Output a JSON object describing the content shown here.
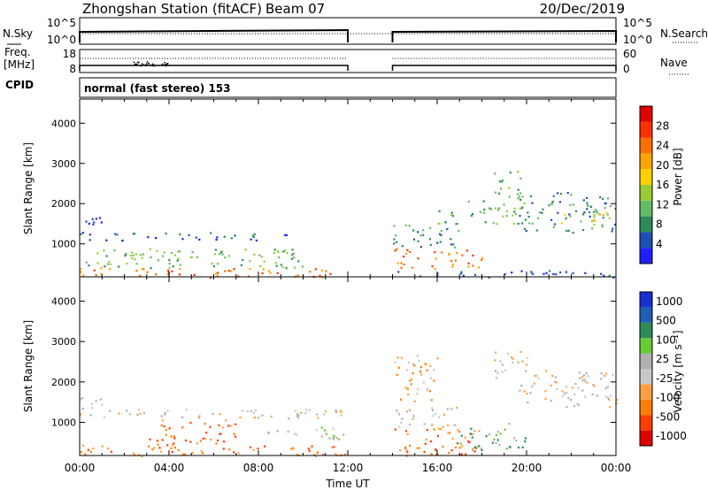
{
  "header": {
    "title": "Zhongshan Station (fitACF)",
    "beam": "Beam 07",
    "date": "20/Dec/2019",
    "mode": "normal (fast stereo) 153"
  },
  "strip_labels": {
    "nsky": "N.Sky",
    "nsearch": "N.Search",
    "freq_line1": "Freq.",
    "freq_line2": "[MHz]",
    "nave": "Nave",
    "cpid": "CPID",
    "exp_hi": "10^5",
    "exp_lo": "10^0",
    "freq_hi": "18",
    "freq_lo": "8",
    "nave_hi": "60",
    "nave_lo": "0"
  },
  "colors": {
    "power": [
      "#2020ff",
      "#1e4fb4",
      "#2e8b57",
      "#66bb66",
      "#99cc33",
      "#ffd000",
      "#ffa500",
      "#ff7000",
      "#ff3000",
      "#e00000"
    ],
    "velocity": [
      "#e00000",
      "#ff4000",
      "#ff8000",
      "#ffa040",
      "#c8c8c8",
      "#b0b0b0",
      "#66cc33",
      "#2e8b57",
      "#1e5fb4",
      "#1a2fd0"
    ]
  },
  "chart_data": [
    {
      "type": "heatmap",
      "name": "power",
      "xlabel": "",
      "ylabel": "Slant Range [km]",
      "colorbar_label": "Power [dB]",
      "colorbar_ticks": [
        "28",
        "24",
        "20",
        "16",
        "12",
        "8",
        "4"
      ],
      "xlim": [
        0,
        24
      ],
      "ylim": [
        180,
        4600
      ],
      "x_ticks": [
        "00:00",
        "04:00",
        "08:00",
        "12:00",
        "16:00",
        "20:00",
        "00:00"
      ],
      "y_ticks": [
        1000,
        2000,
        3000,
        4000
      ],
      "gap_hours": [
        12,
        14
      ],
      "regions": [
        {
          "t0": 0.0,
          "t1": 11.9,
          "r0": 180,
          "r1": 420,
          "level": 7
        },
        {
          "t0": 0.0,
          "t1": 10.0,
          "r0": 420,
          "r1": 900,
          "level": 3
        },
        {
          "t0": 0.0,
          "t1": 9.5,
          "r0": 1100,
          "r1": 1300,
          "level": 1
        },
        {
          "t0": 0.0,
          "t1": 1.0,
          "r0": 1300,
          "r1": 1750,
          "level": 1
        },
        {
          "t0": 2.0,
          "t1": 4.0,
          "r0": 650,
          "r1": 900,
          "level": 4
        },
        {
          "t0": 14.0,
          "t1": 23.9,
          "r0": 180,
          "r1": 350,
          "level": 1
        },
        {
          "t0": 14.0,
          "t1": 18.0,
          "r0": 400,
          "r1": 900,
          "level": 7
        },
        {
          "t0": 14.0,
          "t1": 17.0,
          "r0": 900,
          "r1": 1500,
          "level": 2
        },
        {
          "t0": 16.0,
          "t1": 20.0,
          "r0": 1500,
          "r1": 2100,
          "level": 3
        },
        {
          "t0": 18.5,
          "t1": 19.8,
          "r0": 2100,
          "r1": 2850,
          "level": 3
        },
        {
          "t0": 19.5,
          "t1": 24.0,
          "r0": 1300,
          "r1": 2300,
          "level": 2
        },
        {
          "t0": 21.5,
          "t1": 24.0,
          "r0": 1500,
          "r1": 1800,
          "level": 5
        }
      ]
    },
    {
      "type": "heatmap",
      "name": "velocity",
      "xlabel": "Time UT",
      "ylabel": "Slant Range [km]",
      "colorbar_label": "Velocity [m s⁻¹]",
      "colorbar_ticks": [
        "1000",
        "500",
        "100",
        "25",
        "-25",
        "-100",
        "-500",
        "-1000"
      ],
      "xlim": [
        0,
        24
      ],
      "ylim": [
        180,
        4600
      ],
      "x_ticks": [
        "00:00",
        "04:00",
        "08:00",
        "12:00",
        "16:00",
        "20:00",
        "00:00"
      ],
      "y_ticks": [
        1000,
        2000,
        3000,
        4000
      ],
      "gap_hours": [
        12,
        14
      ],
      "regions": [
        {
          "t0": 0.0,
          "t1": 11.9,
          "r0": 180,
          "r1": 450,
          "level": 2
        },
        {
          "t0": 3.0,
          "t1": 7.0,
          "r0": 450,
          "r1": 1100,
          "level": 2
        },
        {
          "t0": 0.0,
          "t1": 11.9,
          "r0": 1100,
          "r1": 1350,
          "level": 4
        },
        {
          "t0": 0.0,
          "t1": 1.0,
          "r0": 1350,
          "r1": 1800,
          "level": 4
        },
        {
          "t0": 8.0,
          "t1": 11.9,
          "r0": 600,
          "r1": 900,
          "level": 5
        },
        {
          "t0": 14.0,
          "t1": 16.0,
          "r0": 1500,
          "r1": 2700,
          "level": 3
        },
        {
          "t0": 14.0,
          "t1": 18.0,
          "r0": 180,
          "r1": 900,
          "level": 2
        },
        {
          "t0": 14.0,
          "t1": 17.0,
          "r0": 900,
          "r1": 1400,
          "level": 4
        },
        {
          "t0": 17.0,
          "t1": 20.0,
          "r0": 300,
          "r1": 1000,
          "level": 6
        },
        {
          "t0": 18.5,
          "t1": 20.0,
          "r0": 2100,
          "r1": 2850,
          "level": 4
        },
        {
          "t0": 19.5,
          "t1": 24.0,
          "r0": 1400,
          "r1": 2300,
          "level": 4
        }
      ]
    }
  ]
}
